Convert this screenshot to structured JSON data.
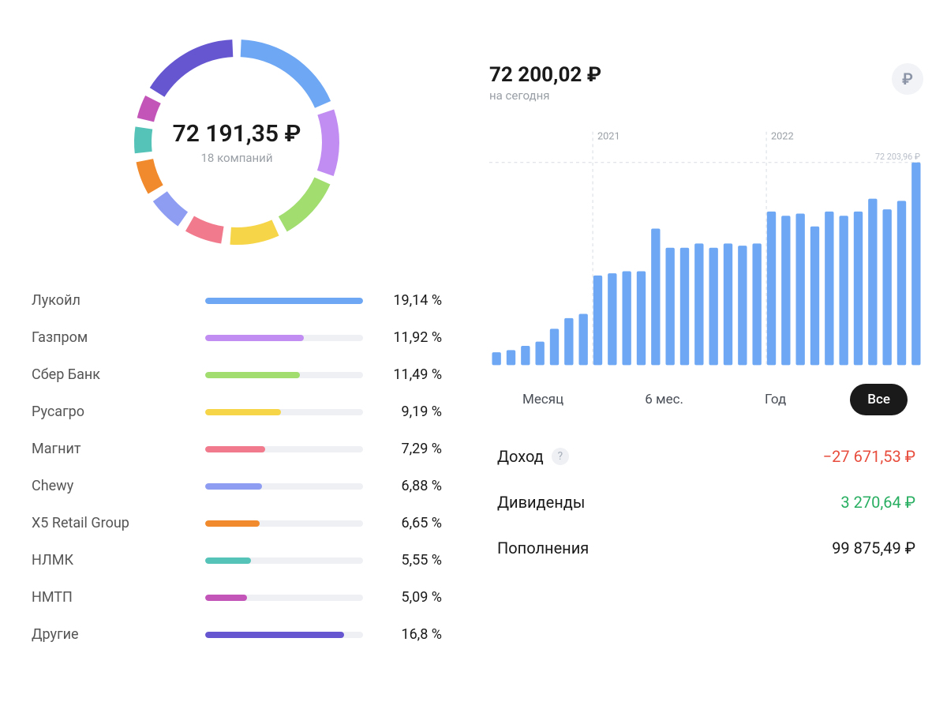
{
  "portfolio": {
    "total": "72 191,35 ₽",
    "subtitle": "18 компаний",
    "donut": {
      "radius": 130,
      "thickness": 22,
      "gap_deg": 5,
      "segments": [
        {
          "pct": 19.14,
          "color": "#6ea7f3"
        },
        {
          "pct": 11.92,
          "color": "#c18df2"
        },
        {
          "pct": 11.49,
          "color": "#a1dd6f"
        },
        {
          "pct": 9.19,
          "color": "#f6d648"
        },
        {
          "pct": 7.29,
          "color": "#f17a8c"
        },
        {
          "pct": 6.88,
          "color": "#8e9df2"
        },
        {
          "pct": 6.65,
          "color": "#f08a2c"
        },
        {
          "pct": 5.55,
          "color": "#55c3b8"
        },
        {
          "pct": 5.09,
          "color": "#c355b9"
        },
        {
          "pct": 16.8,
          "color": "#6657d1"
        }
      ]
    },
    "holdings": [
      {
        "name": "Лукойл",
        "pct": 19.14,
        "pct_label": "19,14 %",
        "color": "#6ea7f3"
      },
      {
        "name": "Газпром",
        "pct": 11.92,
        "pct_label": "11,92 %",
        "color": "#c18df2"
      },
      {
        "name": "Сбер Банк",
        "pct": 11.49,
        "pct_label": "11,49 %",
        "color": "#a1dd6f"
      },
      {
        "name": "Русагро",
        "pct": 9.19,
        "pct_label": "9,19 %",
        "color": "#f6d648"
      },
      {
        "name": "Магнит",
        "pct": 7.29,
        "pct_label": "7,29 %",
        "color": "#f17a8c"
      },
      {
        "name": "Chewy",
        "pct": 6.88,
        "pct_label": "6,88 %",
        "color": "#8e9df2"
      },
      {
        "name": "X5 Retail Group",
        "pct": 6.65,
        "pct_label": "6,65 %",
        "color": "#f08a2c"
      },
      {
        "name": "НЛМК",
        "pct": 5.55,
        "pct_label": "5,55 %",
        "color": "#55c3b8"
      },
      {
        "name": "НМТП",
        "pct": 5.09,
        "pct_label": "5,09 %",
        "color": "#c355b9"
      },
      {
        "name": "Другие",
        "pct": 16.8,
        "pct_label": "16,8 %",
        "color": "#6657d1"
      }
    ]
  },
  "history": {
    "balance": "72 200,02 ₽",
    "balance_sub": "на сегодня",
    "currency_symbol": "₽",
    "reference_line_label": "72 203,96 ₽",
    "bar_color": "#6ea7f3",
    "grid_color": "#d8dce2",
    "year_markers": [
      {
        "label": "2021",
        "after_index": 7
      },
      {
        "label": "2022",
        "after_index": 19
      }
    ],
    "bars": [
      6,
      7,
      9,
      11,
      17,
      22,
      24,
      42,
      43,
      44,
      44,
      64,
      55,
      55,
      57,
      55,
      57,
      56,
      57,
      72,
      70,
      71,
      65,
      72,
      70,
      72,
      78,
      73,
      77,
      95
    ],
    "max_value": 100,
    "periods": [
      {
        "label": "Месяц",
        "active": false
      },
      {
        "label": "6 мес.",
        "active": false
      },
      {
        "label": "Год",
        "active": false
      },
      {
        "label": "Все",
        "active": true
      }
    ],
    "stats": [
      {
        "label": "Доход",
        "help": true,
        "value": "−27 671,53 ₽",
        "tone": "neg"
      },
      {
        "label": "Дивиденды",
        "help": false,
        "value": "3 270,64 ₽",
        "tone": "pos"
      },
      {
        "label": "Пополнения",
        "help": false,
        "value": "99 875,49 ₽",
        "tone": ""
      }
    ]
  }
}
